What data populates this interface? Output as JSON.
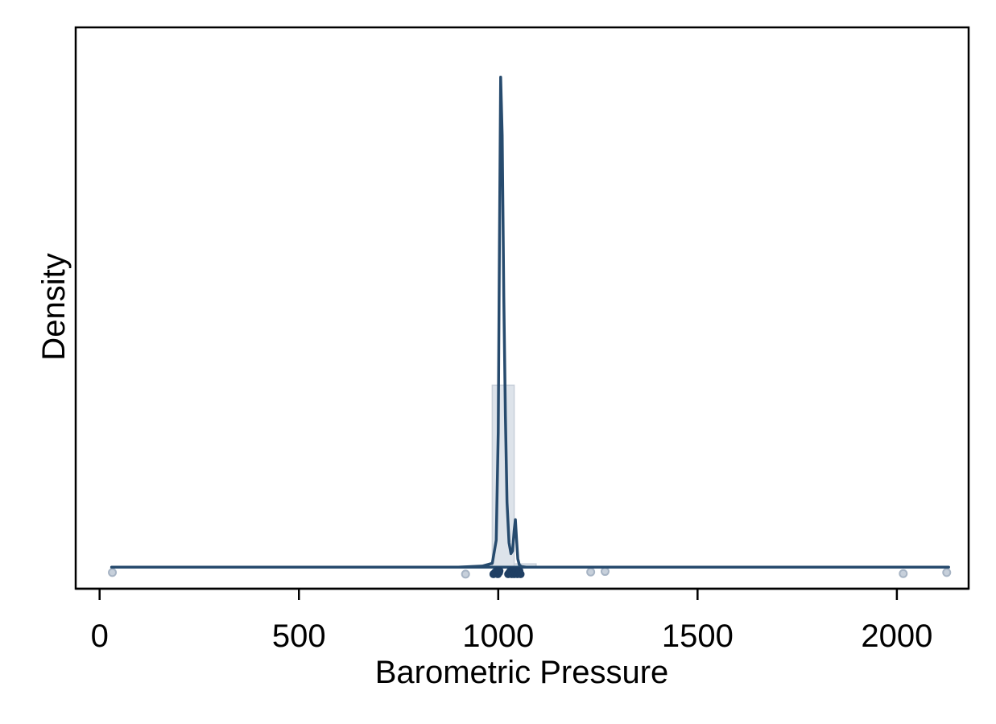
{
  "chart_data": {
    "type": "area",
    "title": "",
    "xlabel": "Barometric Pressure",
    "ylabel": "Density",
    "xlim": [
      -60,
      2180
    ],
    "ylim": [
      -0.004,
      0.1
    ],
    "x_ticks": [
      0,
      500,
      1000,
      1500,
      2000
    ],
    "x_tick_labels": [
      "0",
      "500",
      "1000",
      "1500",
      "2000"
    ],
    "y_ticks_shown": false,
    "grid": false,
    "legend": "none",
    "colors": {
      "density_line": "#274b6e",
      "histogram_fill": "#dde3ea",
      "histogram_edge": "#c8d0da",
      "points": "#a7b4c4",
      "rug": "#1f3f63"
    },
    "histogram": [
      {
        "bin_start": 880,
        "bin_end": 985,
        "density": 0.00015
      },
      {
        "bin_start": 985,
        "bin_end": 1040,
        "density": 0.0337
      },
      {
        "bin_start": 1040,
        "bin_end": 1095,
        "density": 0.0006
      },
      {
        "bin_start": 1095,
        "bin_end": 1150,
        "density": 5e-05
      }
    ],
    "density_curve": {
      "x": [
        30,
        900,
        960,
        985,
        995,
        1000,
        1003,
        1006,
        1010,
        1014,
        1018,
        1022,
        1027,
        1032,
        1036,
        1040,
        1043,
        1046,
        1049,
        1053,
        1058,
        1070,
        1100,
        1200,
        2130
      ],
      "y": [
        0,
        0,
        0.0002,
        0.0007,
        0.005,
        0.025,
        0.06,
        0.0908,
        0.08,
        0.05,
        0.028,
        0.012,
        0.0045,
        0.0025,
        0.003,
        0.0068,
        0.0088,
        0.005,
        0.0015,
        0.0004,
        0.0001,
        0,
        0,
        0,
        0
      ]
    },
    "outlier_points": [
      {
        "x": 32,
        "y": -0.001
      },
      {
        "x": 918,
        "y": -0.0013
      },
      {
        "x": 1232,
        "y": -0.0009
      },
      {
        "x": 1268,
        "y": -0.0008
      },
      {
        "x": 2016,
        "y": -0.0012
      },
      {
        "x": 2125,
        "y": -0.001
      }
    ],
    "rug_x": [
      988,
      992,
      996,
      999,
      1002,
      1003,
      1025,
      1028,
      1031,
      1034,
      1036,
      1038,
      1040,
      1042,
      1045,
      1048,
      1050,
      1053,
      1056
    ]
  }
}
